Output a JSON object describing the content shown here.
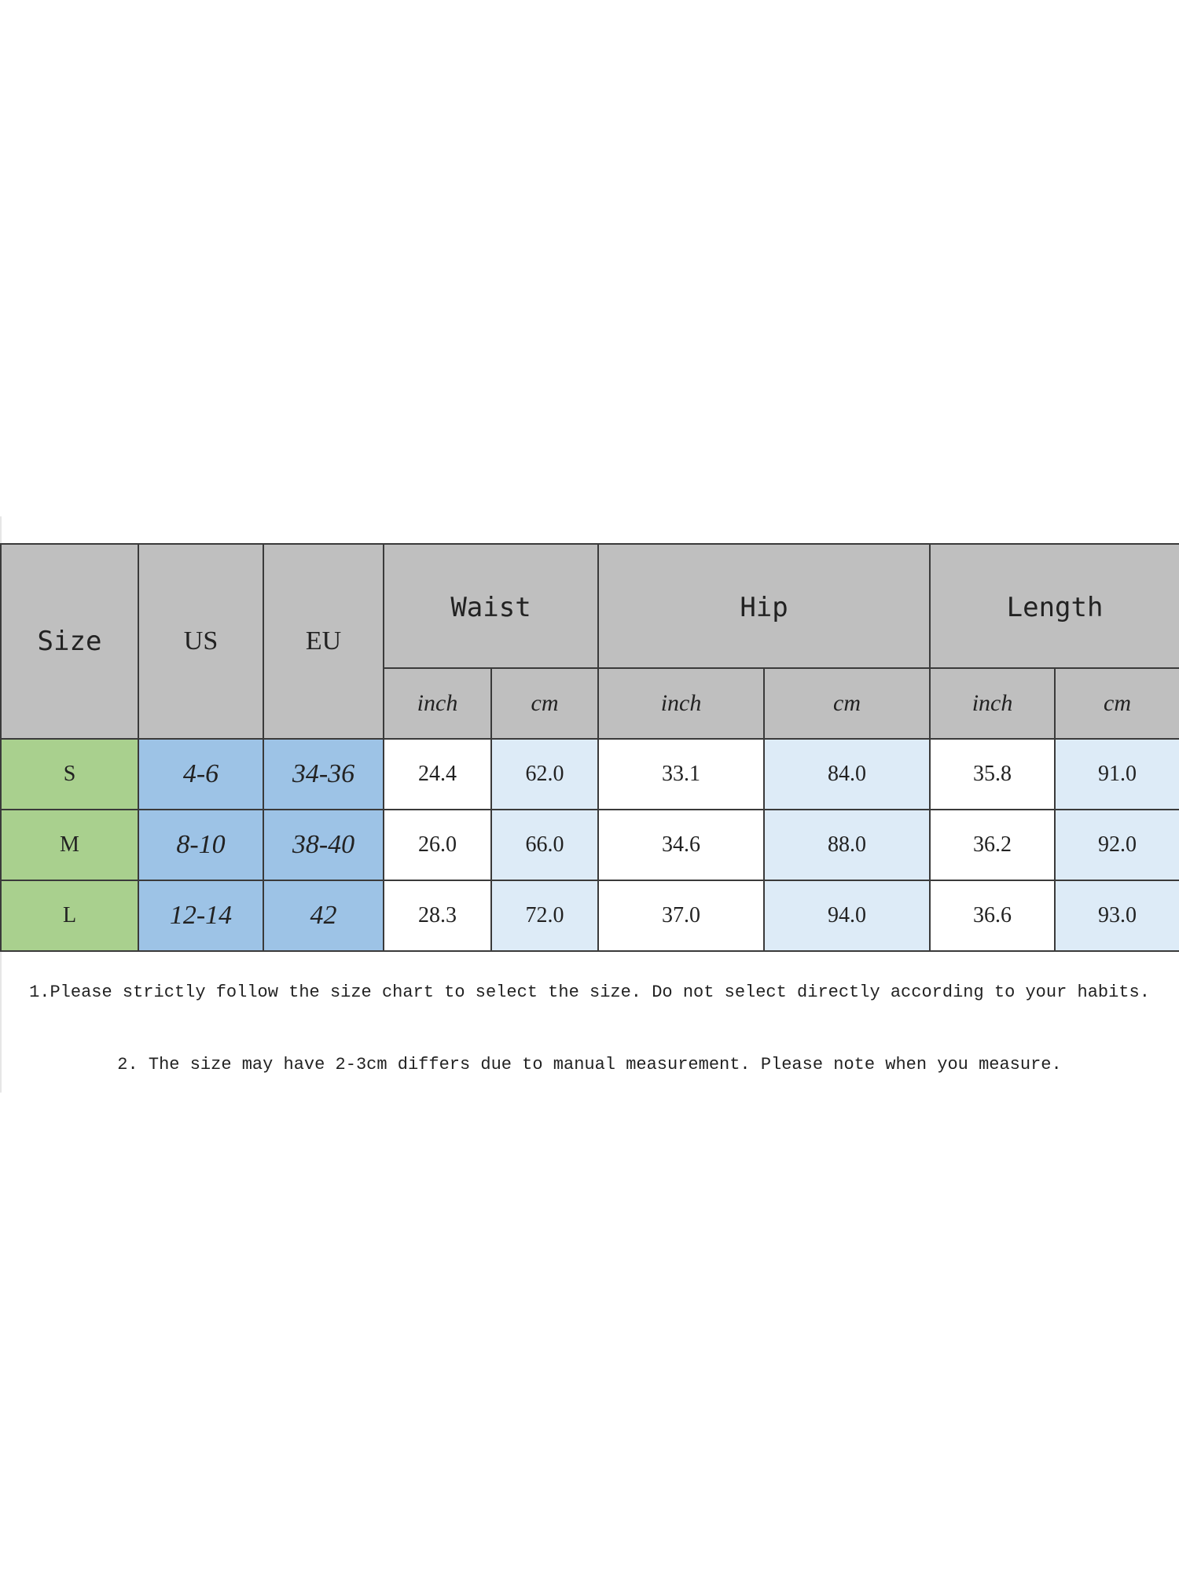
{
  "table": {
    "headers": {
      "size": "Size",
      "us": "US",
      "eu": "EU",
      "waist": "Waist",
      "hip": "Hip",
      "length": "Length"
    },
    "units": [
      "inch",
      "cm",
      "inch",
      "cm",
      "inch",
      "cm"
    ],
    "rows": [
      {
        "size": "S",
        "us": "4-6",
        "eu": "34-36",
        "values": [
          "24.4",
          "62.0",
          "33.1",
          "84.0",
          "35.8",
          "91.0"
        ]
      },
      {
        "size": "M",
        "us": "8-10",
        "eu": "38-40",
        "values": [
          "26.0",
          "66.0",
          "34.6",
          "88.0",
          "36.2",
          "92.0"
        ]
      },
      {
        "size": "L",
        "us": "12-14",
        "eu": "42",
        "values": [
          "28.3",
          "72.0",
          "37.0",
          "94.0",
          "36.6",
          "93.0"
        ]
      }
    ]
  },
  "notes": [
    "1.Please strictly follow the size chart to select the size. Do not select directly according to your habits.",
    "2. The size may have 2-3cm differs due to manual measurement. Please note when you measure."
  ],
  "colors": {
    "header": "#bfbfbf",
    "size_col": "#a9d08e",
    "region_col": "#9dc3e6",
    "cm_col": "#ddebf7"
  }
}
